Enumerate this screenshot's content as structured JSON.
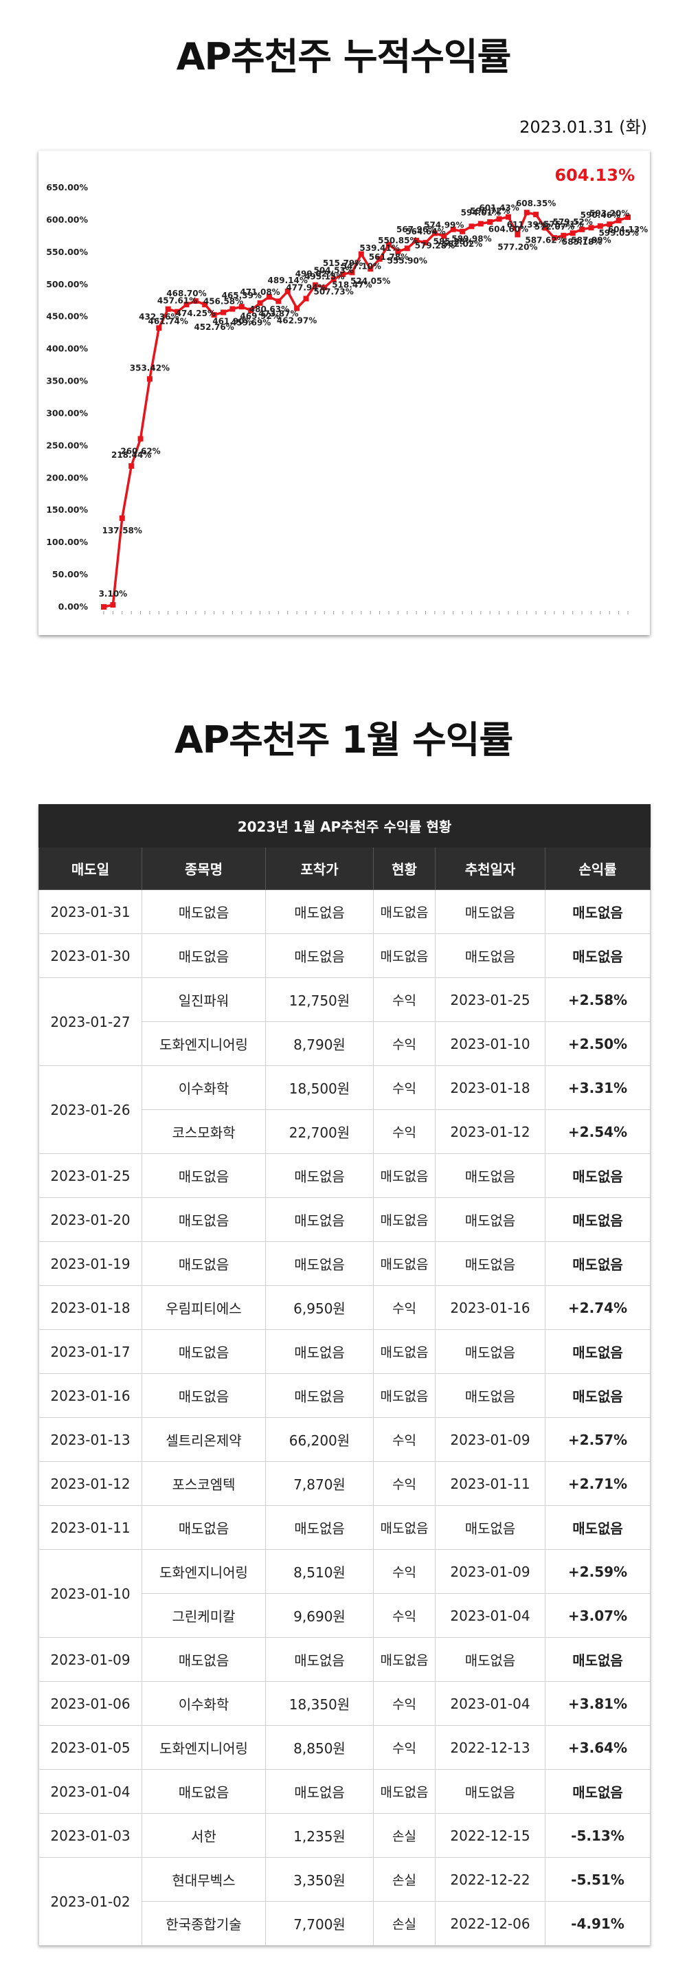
{
  "title": "AP추천주 누적수익률",
  "date": "2023.01.31 (화)",
  "table_title": "AP추천주 1월 수익률",
  "chart_data": {
    "type": "line",
    "title": "AP추천주 누적수익률",
    "xlabel": "",
    "ylabel": "",
    "ylim": [
      0,
      650
    ],
    "yticks": [
      "0.00%",
      "50.00%",
      "100.00%",
      "150.00%",
      "200.00%",
      "250.00%",
      "300.00%",
      "350.00%",
      "400.00%",
      "450.00%",
      "500.00%",
      "550.00%",
      "600.00%",
      "650.00%"
    ],
    "grid": false,
    "legend": "none",
    "series_color": "#e8141b",
    "final_label": "604.13%",
    "labels": [
      "3.10%",
      "137.58%",
      "218.44%",
      "260.62%",
      "353.42%",
      "469.92%",
      "432.36%",
      "461.74%",
      "457.61%",
      "474.25%",
      "468.70%",
      "452.76%",
      "465.39%",
      "461.90%",
      "456.58%",
      "480.63%",
      "471.08%",
      "459.69%",
      "489.14%",
      "473.87%",
      "499.02%",
      "462.97%",
      "477.94%",
      "507.73%",
      "495.15%",
      "547.10%",
      "515.79%",
      "518.47%",
      "504.53%",
      "561.78%",
      "539.41%",
      "524.05%",
      "567.96%",
      "555.90%",
      "550.85%",
      "579.28%",
      "564.64%",
      "585.28%",
      "574.99%",
      "582.02%",
      "596.72%",
      "589.98%",
      "594.01%",
      "604.60%",
      "601.43%",
      "611.39%",
      "572.07%",
      "577.20%",
      "608.35%",
      "587.62%",
      "575.71%",
      "585.18%",
      "579.52%",
      "587.89%",
      "590.46%",
      "599.05%",
      "593.20%",
      "604.13%"
    ],
    "values": [
      0,
      3.1,
      137.58,
      218.44,
      260.62,
      353.42,
      432.36,
      461.74,
      457.61,
      468.7,
      474.25,
      468.7,
      452.76,
      456.58,
      461.9,
      465.39,
      459.69,
      471.08,
      480.63,
      473.87,
      489.14,
      462.97,
      477.94,
      499.02,
      495.15,
      507.73,
      515.79,
      518.47,
      547.1,
      524.05,
      539.41,
      561.78,
      550.85,
      555.9,
      567.96,
      564.64,
      579.28,
      574.99,
      585.28,
      582.02,
      589.98,
      594.01,
      596.72,
      601.43,
      604.6,
      577.2,
      611.39,
      608.35,
      587.62,
      572.07,
      575.71,
      579.52,
      585.18,
      587.89,
      590.46,
      593.2,
      599.05,
      604.13
    ]
  },
  "table": {
    "caption": "2023년 1월 AP추천주 수익률 현황",
    "headers": [
      "매도일",
      "종목명",
      "포착가",
      "현황",
      "추천일자",
      "손익률"
    ],
    "rows": [
      {
        "date": "2023-01-31",
        "items": [
          {
            "name": "매도없음",
            "price": "매도없음",
            "status": "매도없음",
            "rec": "매도없음",
            "ret": "매도없음",
            "type": "none"
          }
        ]
      },
      {
        "date": "2023-01-30",
        "items": [
          {
            "name": "매도없음",
            "price": "매도없음",
            "status": "매도없음",
            "rec": "매도없음",
            "ret": "매도없음",
            "type": "none"
          }
        ]
      },
      {
        "date": "2023-01-27",
        "items": [
          {
            "name": "일진파워",
            "price": "12,750원",
            "status": "수익",
            "rec": "2023-01-25",
            "ret": "+2.58%",
            "type": "pos"
          },
          {
            "name": "도화엔지니어링",
            "price": "8,790원",
            "status": "수익",
            "rec": "2023-01-10",
            "ret": "+2.50%",
            "type": "pos"
          }
        ]
      },
      {
        "date": "2023-01-26",
        "items": [
          {
            "name": "이수화학",
            "price": "18,500원",
            "status": "수익",
            "rec": "2023-01-18",
            "ret": "+3.31%",
            "type": "pos"
          },
          {
            "name": "코스모화학",
            "price": "22,700원",
            "status": "수익",
            "rec": "2023-01-12",
            "ret": "+2.54%",
            "type": "pos"
          }
        ]
      },
      {
        "date": "2023-01-25",
        "items": [
          {
            "name": "매도없음",
            "price": "매도없음",
            "status": "매도없음",
            "rec": "매도없음",
            "ret": "매도없음",
            "type": "none"
          }
        ]
      },
      {
        "date": "2023-01-20",
        "items": [
          {
            "name": "매도없음",
            "price": "매도없음",
            "status": "매도없음",
            "rec": "매도없음",
            "ret": "매도없음",
            "type": "none"
          }
        ]
      },
      {
        "date": "2023-01-19",
        "items": [
          {
            "name": "매도없음",
            "price": "매도없음",
            "status": "매도없음",
            "rec": "매도없음",
            "ret": "매도없음",
            "type": "none"
          }
        ]
      },
      {
        "date": "2023-01-18",
        "items": [
          {
            "name": "우림피티에스",
            "price": "6,950원",
            "status": "수익",
            "rec": "2023-01-16",
            "ret": "+2.74%",
            "type": "pos"
          }
        ]
      },
      {
        "date": "2023-01-17",
        "items": [
          {
            "name": "매도없음",
            "price": "매도없음",
            "status": "매도없음",
            "rec": "매도없음",
            "ret": "매도없음",
            "type": "none"
          }
        ]
      },
      {
        "date": "2023-01-16",
        "items": [
          {
            "name": "매도없음",
            "price": "매도없음",
            "status": "매도없음",
            "rec": "매도없음",
            "ret": "매도없음",
            "type": "none"
          }
        ]
      },
      {
        "date": "2023-01-13",
        "items": [
          {
            "name": "셀트리온제약",
            "price": "66,200원",
            "status": "수익",
            "rec": "2023-01-09",
            "ret": "+2.57%",
            "type": "pos"
          }
        ]
      },
      {
        "date": "2023-01-12",
        "items": [
          {
            "name": "포스코엠텍",
            "price": "7,870원",
            "status": "수익",
            "rec": "2023-01-11",
            "ret": "+2.71%",
            "type": "pos"
          }
        ]
      },
      {
        "date": "2023-01-11",
        "items": [
          {
            "name": "매도없음",
            "price": "매도없음",
            "status": "매도없음",
            "rec": "매도없음",
            "ret": "매도없음",
            "type": "none"
          }
        ]
      },
      {
        "date": "2023-01-10",
        "items": [
          {
            "name": "도화엔지니어링",
            "price": "8,510원",
            "status": "수익",
            "rec": "2023-01-09",
            "ret": "+2.59%",
            "type": "pos"
          },
          {
            "name": "그린케미칼",
            "price": "9,690원",
            "status": "수익",
            "rec": "2023-01-04",
            "ret": "+3.07%",
            "type": "pos"
          }
        ]
      },
      {
        "date": "2023-01-09",
        "items": [
          {
            "name": "매도없음",
            "price": "매도없음",
            "status": "매도없음",
            "rec": "매도없음",
            "ret": "매도없음",
            "type": "none"
          }
        ]
      },
      {
        "date": "2023-01-06",
        "items": [
          {
            "name": "이수화학",
            "price": "18,350원",
            "status": "수익",
            "rec": "2023-01-04",
            "ret": "+3.81%",
            "type": "pos"
          }
        ]
      },
      {
        "date": "2023-01-05",
        "items": [
          {
            "name": "도화엔지니어링",
            "price": "8,850원",
            "status": "수익",
            "rec": "2022-12-13",
            "ret": "+3.64%",
            "type": "pos"
          }
        ]
      },
      {
        "date": "2023-01-04",
        "items": [
          {
            "name": "매도없음",
            "price": "매도없음",
            "status": "매도없음",
            "rec": "매도없음",
            "ret": "매도없음",
            "type": "none"
          }
        ]
      },
      {
        "date": "2023-01-03",
        "items": [
          {
            "name": "서한",
            "price": "1,235원",
            "status": "손실",
            "rec": "2022-12-15",
            "ret": "-5.13%",
            "type": "neg"
          }
        ]
      },
      {
        "date": "2023-01-02",
        "items": [
          {
            "name": "현대무벡스",
            "price": "3,350원",
            "status": "손실",
            "rec": "2022-12-22",
            "ret": "-5.51%",
            "type": "neg"
          },
          {
            "name": "한국종합기술",
            "price": "7,700원",
            "status": "손실",
            "rec": "2022-12-06",
            "ret": "-4.91%",
            "type": "neg"
          }
        ]
      }
    ]
  }
}
